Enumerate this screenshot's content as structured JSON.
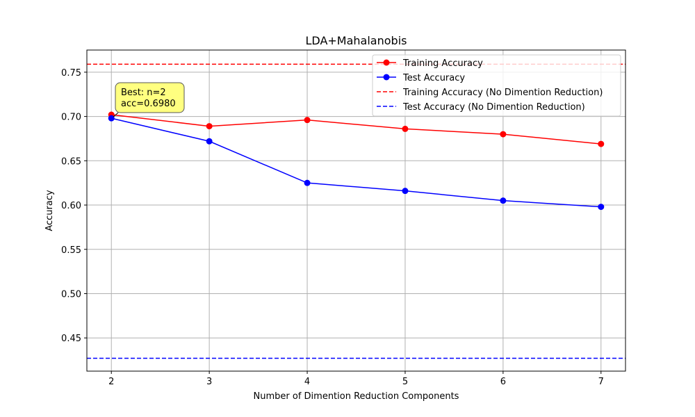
{
  "chart_data": {
    "type": "line",
    "title": "LDA+Mahalanobis",
    "xlabel": "Number of Dimention Reduction Components",
    "ylabel": "Accuracy",
    "x": [
      2,
      3,
      4,
      5,
      6,
      7
    ],
    "xlim": [
      1.75,
      7.25
    ],
    "ylim": [
      0.4125,
      0.775
    ],
    "yticks": [
      0.45,
      0.5,
      0.55,
      0.6,
      0.65,
      0.7,
      0.75
    ],
    "ytick_labels": [
      "0.45",
      "0.50",
      "0.55",
      "0.60",
      "0.65",
      "0.70",
      "0.75"
    ],
    "xtick_labels": [
      "2",
      "3",
      "4",
      "5",
      "6",
      "7"
    ],
    "grid": true,
    "legend_position": "top-right",
    "series": [
      {
        "name": "Training Accuracy",
        "values": [
          0.702,
          0.689,
          0.696,
          0.686,
          0.68,
          0.669
        ],
        "color": "#ff0000",
        "style": "solid-marker"
      },
      {
        "name": "Test Accuracy",
        "values": [
          0.698,
          0.672,
          0.625,
          0.616,
          0.605,
          0.598
        ],
        "color": "#0000ff",
        "style": "solid-marker"
      }
    ],
    "hlines": [
      {
        "name": "Training Accuracy (No Dimention Reduction)",
        "value": 0.759,
        "color": "#ff0000",
        "style": "dashed"
      },
      {
        "name": "Test Accuracy (No Dimention Reduction)",
        "value": 0.427,
        "color": "#0000ff",
        "style": "dashed"
      }
    ],
    "annotation": {
      "line1": "Best: n=2",
      "line2": "acc=0.6980",
      "x": 2,
      "y": 0.698,
      "box_color": "#ffff80"
    }
  }
}
